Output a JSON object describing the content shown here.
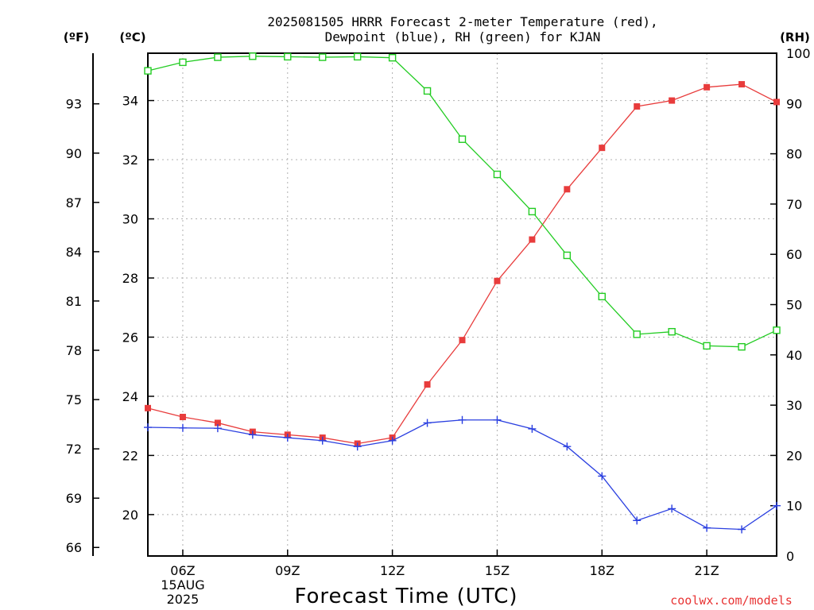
{
  "chart_data": {
    "type": "line",
    "title_line1": "2025081505 HRRR Forecast 2-meter Temperature (red),",
    "title_line2": "Dewpoint (blue), RH (green) for KJAN",
    "xlabel": "Forecast Time (UTC)",
    "credit": "coolwx.com/models",
    "left_unit_f": "(ºF)",
    "left_unit_c": "(ºC)",
    "right_unit": "(RH)",
    "x_hours": [
      5,
      6,
      7,
      8,
      9,
      10,
      11,
      12,
      13,
      14,
      15,
      16,
      17,
      18,
      19,
      20,
      21,
      22,
      23
    ],
    "x_range": [
      5,
      23
    ],
    "x_ticks": [
      {
        "hour": 6,
        "label": "06Z",
        "sub1": "15AUG",
        "sub2": "2025"
      },
      {
        "hour": 9,
        "label": "09Z"
      },
      {
        "hour": 12,
        "label": "12Z"
      },
      {
        "hour": 15,
        "label": "15Z"
      },
      {
        "hour": 18,
        "label": "18Z"
      },
      {
        "hour": 21,
        "label": "21Z"
      }
    ],
    "celsius_axis": {
      "range": [
        18.6,
        35.6
      ],
      "ticks": [
        20,
        22,
        24,
        26,
        28,
        30,
        32,
        34
      ]
    },
    "fahrenheit_axis": {
      "ticks": [
        66,
        69,
        72,
        75,
        78,
        81,
        84,
        87,
        90,
        93
      ]
    },
    "rh_axis": {
      "range": [
        0,
        100
      ],
      "ticks": [
        0,
        10,
        20,
        30,
        40,
        50,
        60,
        70,
        80,
        90,
        100
      ]
    },
    "grid": true,
    "series": [
      {
        "name": "Temperature",
        "color": "#e83c3c",
        "marker": "filled-square",
        "axis": "celsius",
        "values": [
          23.6,
          23.3,
          23.1,
          22.8,
          22.7,
          22.6,
          22.4,
          22.6,
          24.4,
          25.9,
          27.9,
          29.3,
          31.0,
          32.4,
          33.8,
          34.0,
          34.45,
          34.55,
          33.95
        ]
      },
      {
        "name": "Dewpoint",
        "color": "#2a3fe0",
        "marker": "plus",
        "axis": "celsius",
        "values": [
          22.95,
          22.93,
          22.92,
          22.7,
          22.6,
          22.5,
          22.3,
          22.5,
          23.1,
          23.2,
          23.2,
          22.9,
          22.3,
          21.3,
          19.8,
          20.2,
          19.55,
          19.5,
          20.3
        ]
      },
      {
        "name": "RH",
        "color": "#22cc22",
        "marker": "open-square",
        "axis": "rh",
        "values": [
          96.5,
          98.2,
          99.2,
          99.4,
          99.3,
          99.2,
          99.3,
          99.1,
          92.5,
          82.9,
          75.9,
          68.5,
          59.8,
          51.6,
          44.1,
          44.6,
          41.8,
          41.6,
          44.9
        ]
      }
    ]
  }
}
